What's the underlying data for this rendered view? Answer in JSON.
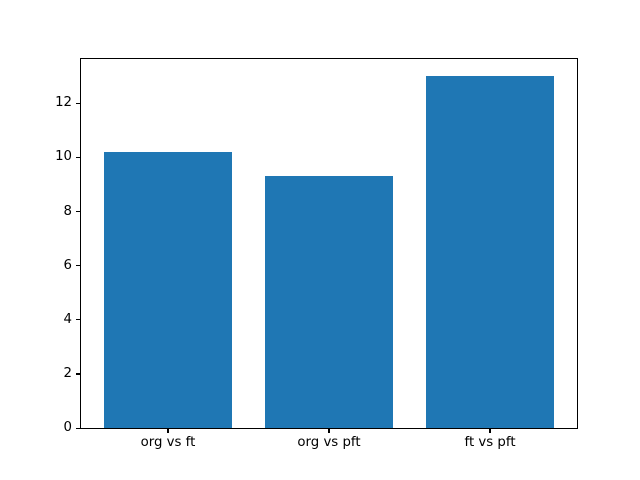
{
  "chart_data": {
    "type": "bar",
    "title": "",
    "xlabel": "",
    "ylabel": "",
    "categories": [
      "org vs ft",
      "org vs pft",
      "ft vs pft"
    ],
    "values": [
      10.2,
      9.3,
      13.0
    ],
    "yticks": [
      0,
      2,
      4,
      6,
      8,
      10,
      12
    ],
    "ylim": [
      0,
      13.65
    ],
    "xlim": [
      -0.54,
      2.54
    ],
    "bar_width": 0.8,
    "bar_color": "#1f77b4",
    "axes_background": "#ffffff",
    "figure_background": "#ffffff",
    "spine_color": "#000000",
    "tick_label_color": "#000000",
    "grid": false,
    "legend": null
  }
}
